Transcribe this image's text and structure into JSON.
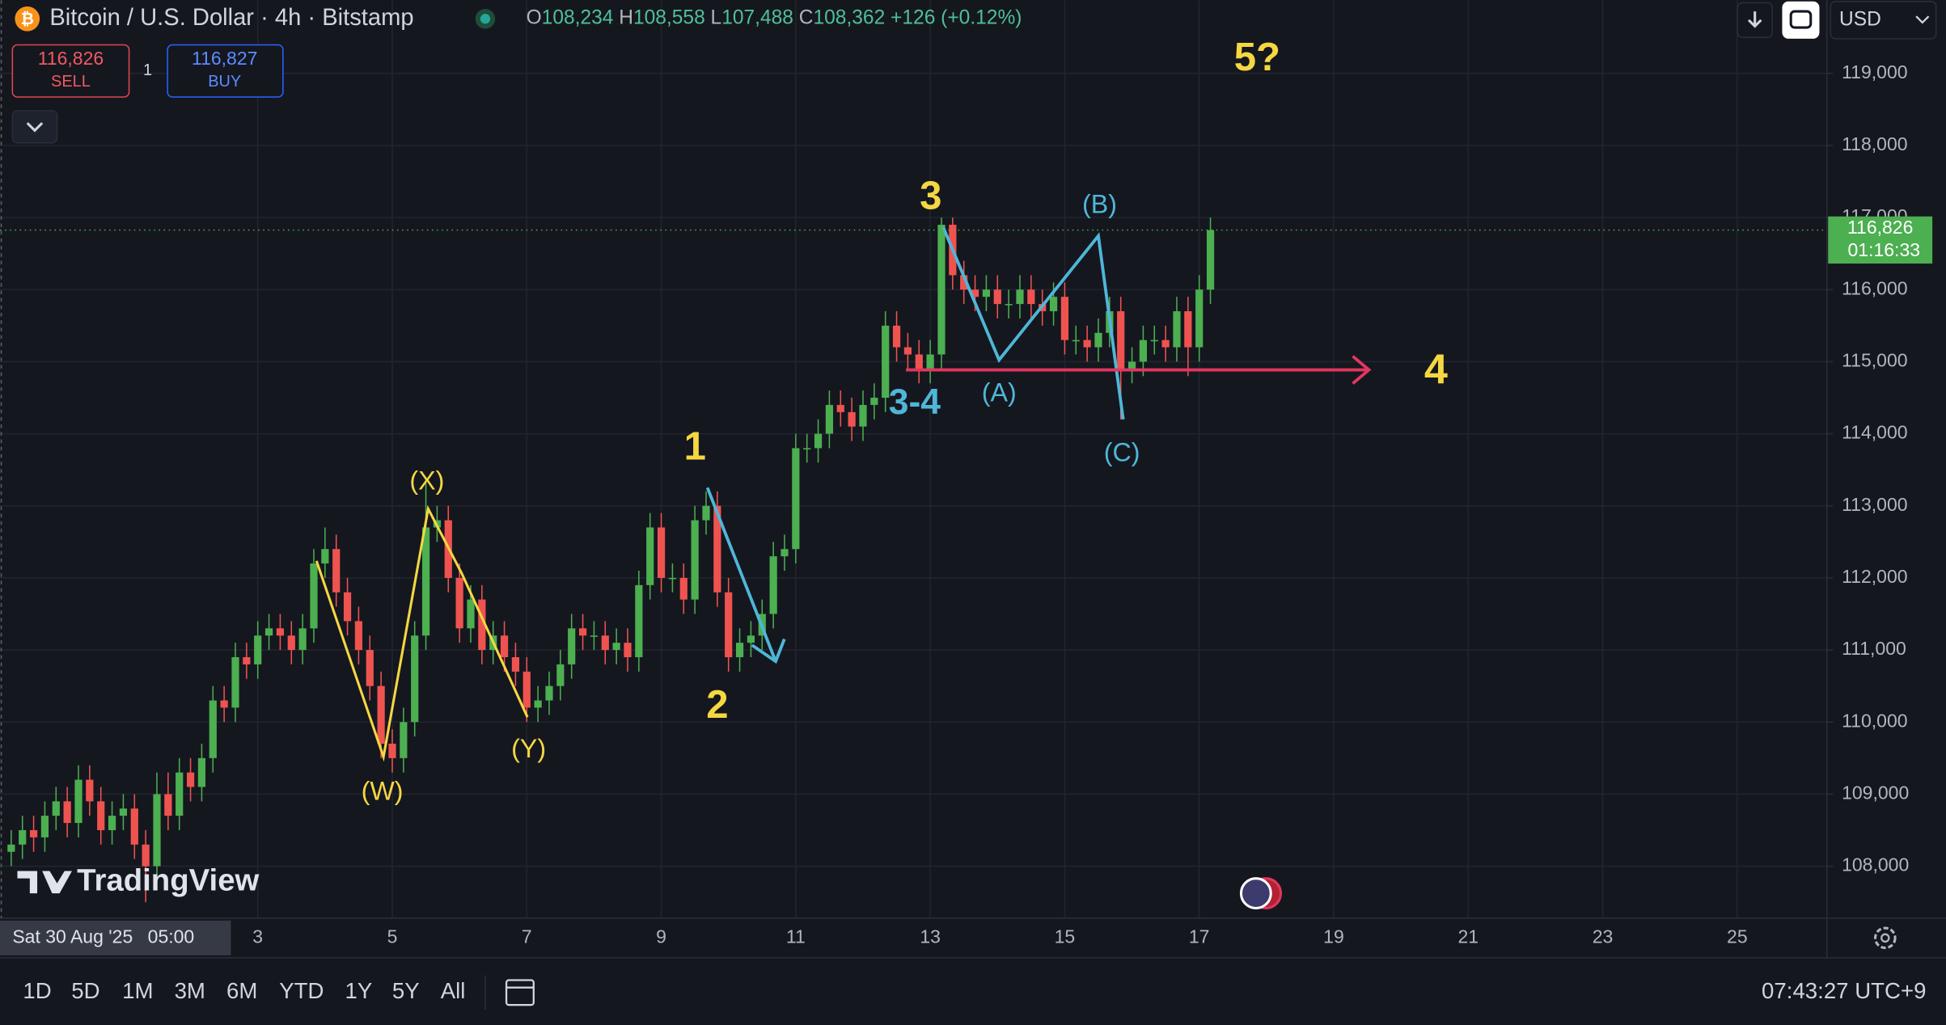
{
  "header": {
    "symbol": "Bitcoin / U.S. Dollar · 4h · Bitstamp",
    "ohlc": [
      {
        "key": "O",
        "value": "108,234"
      },
      {
        "key": "H",
        "value": "108,558"
      },
      {
        "key": "L",
        "value": "107,488"
      },
      {
        "key": "C",
        "value": "108,362"
      }
    ],
    "change": "+126 (+0.12%)",
    "sell_price": "116,826",
    "sell_label": "SELL",
    "quantity": "1",
    "buy_price": "116,827",
    "buy_label": "BUY",
    "currency": "USD"
  },
  "chart_data": {
    "type": "candlestick",
    "up_color": "#4caf50",
    "down_color": "#ef5350",
    "grid": true,
    "x": [
      8,
      12,
      16,
      20,
      24,
      28,
      32,
      36,
      40,
      44,
      48,
      52,
      56,
      60,
      64,
      68,
      72,
      76,
      80,
      84,
      88,
      92,
      96,
      100,
      104,
      108,
      112,
      116,
      120,
      124,
      128,
      132,
      136,
      140,
      144,
      148,
      152,
      156,
      160,
      164,
      168,
      172,
      176,
      180,
      184,
      188,
      192,
      196,
      200,
      204,
      208,
      212,
      216,
      220,
      224,
      228,
      232,
      236,
      240,
      244,
      248,
      252,
      256,
      260,
      264,
      268,
      272,
      276,
      280,
      284,
      288,
      292,
      296,
      300,
      304,
      308,
      312,
      316,
      320,
      324,
      328,
      332,
      336,
      340,
      344,
      348,
      352,
      356,
      360,
      364,
      368,
      372,
      376,
      380,
      384,
      388,
      392,
      396,
      400,
      404,
      408,
      412,
      416,
      420,
      424,
      428,
      432,
      436
    ],
    "candles": [
      [
        108200,
        108500,
        108000,
        108300
      ],
      [
        108300,
        108700,
        108100,
        108500
      ],
      [
        108500,
        108700,
        108200,
        108400
      ],
      [
        108400,
        108900,
        108200,
        108700
      ],
      [
        108700,
        109100,
        108500,
        108900
      ],
      [
        108900,
        109100,
        108400,
        108600
      ],
      [
        108600,
        109400,
        108400,
        109200
      ],
      [
        109200,
        109400,
        108700,
        108900
      ],
      [
        108900,
        109100,
        108300,
        108500
      ],
      [
        108500,
        108900,
        108300,
        108700
      ],
      [
        108700,
        109000,
        108500,
        108800
      ],
      [
        108800,
        109000,
        108100,
        108300
      ],
      [
        108300,
        108500,
        107500,
        108000
      ],
      [
        108000,
        109300,
        107800,
        109000
      ],
      [
        109000,
        109300,
        108500,
        108700
      ],
      [
        108700,
        109500,
        108500,
        109300
      ],
      [
        109300,
        109500,
        108900,
        109100
      ],
      [
        109100,
        109700,
        108900,
        109500
      ],
      [
        109500,
        110500,
        109300,
        110300
      ],
      [
        110300,
        110500,
        110000,
        110200
      ],
      [
        110200,
        111100,
        110000,
        110900
      ],
      [
        110900,
        111100,
        110600,
        110800
      ],
      [
        110800,
        111400,
        110600,
        111200
      ],
      [
        111200,
        111500,
        111000,
        111300
      ],
      [
        111300,
        111500,
        111000,
        111200
      ],
      [
        111200,
        111400,
        110800,
        111000
      ],
      [
        111000,
        111500,
        110800,
        111300
      ],
      [
        111300,
        112400,
        111100,
        112200
      ],
      [
        112200,
        112700,
        112000,
        112400
      ],
      [
        112400,
        112600,
        111600,
        111800
      ],
      [
        111800,
        112000,
        111200,
        111400
      ],
      [
        111400,
        111600,
        110800,
        111000
      ],
      [
        111000,
        111200,
        110300,
        110500
      ],
      [
        110500,
        110700,
        109500,
        109700
      ],
      [
        109700,
        109900,
        109300,
        109500
      ],
      [
        109500,
        110200,
        109300,
        110000
      ],
      [
        110000,
        111400,
        109800,
        111200
      ],
      [
        111200,
        113400,
        111000,
        112700
      ],
      [
        112700,
        113000,
        112500,
        112800
      ],
      [
        112800,
        113000,
        111800,
        112000
      ],
      [
        112000,
        112200,
        111100,
        111300
      ],
      [
        111300,
        111900,
        111100,
        111700
      ],
      [
        111700,
        111900,
        110800,
        111000
      ],
      [
        111000,
        111400,
        110800,
        111200
      ],
      [
        111200,
        111400,
        110700,
        110900
      ],
      [
        110900,
        111100,
        110500,
        110700
      ],
      [
        110700,
        110900,
        110000,
        110200
      ],
      [
        110200,
        110500,
        110000,
        110300
      ],
      [
        110300,
        110700,
        110100,
        110500
      ],
      [
        110500,
        111000,
        110300,
        110800
      ],
      [
        110800,
        111500,
        110600,
        111300
      ],
      [
        111300,
        111500,
        111000,
        111200
      ],
      [
        111200,
        111400,
        111000,
        111200
      ],
      [
        111200,
        111400,
        110800,
        111000
      ],
      [
        111000,
        111300,
        110800,
        111100
      ],
      [
        111100,
        111300,
        110700,
        110900
      ],
      [
        110900,
        112100,
        110700,
        111900
      ],
      [
        111900,
        112900,
        111700,
        112700
      ],
      [
        112700,
        112900,
        111800,
        112000
      ],
      [
        112000,
        112200,
        111800,
        112000
      ],
      [
        112000,
        112200,
        111500,
        111700
      ],
      [
        111700,
        113000,
        111500,
        112800
      ],
      [
        112800,
        113200,
        112600,
        113000
      ],
      [
        113000,
        113200,
        111600,
        111800
      ],
      [
        111800,
        112000,
        110700,
        110900
      ],
      [
        110900,
        111300,
        110700,
        111100
      ],
      [
        111100,
        111400,
        110900,
        111200
      ],
      [
        111200,
        111700,
        111000,
        111500
      ],
      [
        111500,
        112500,
        111300,
        112300
      ],
      [
        112300,
        112600,
        112100,
        112400
      ],
      [
        112400,
        114000,
        112200,
        113800
      ],
      [
        113800,
        114000,
        113600,
        113800
      ],
      [
        113800,
        114200,
        113600,
        114000
      ],
      [
        114000,
        114600,
        113800,
        114400
      ],
      [
        114400,
        114600,
        114100,
        114300
      ],
      [
        114300,
        114500,
        113900,
        114100
      ],
      [
        114100,
        114600,
        113900,
        114400
      ],
      [
        114400,
        114700,
        114200,
        114500
      ],
      [
        114500,
        115700,
        114300,
        115500
      ],
      [
        115500,
        115700,
        115000,
        115200
      ],
      [
        115200,
        115400,
        114900,
        115100
      ],
      [
        115100,
        115300,
        114700,
        114900
      ],
      [
        114900,
        115300,
        114700,
        115100
      ],
      [
        115100,
        117000,
        114900,
        116900
      ],
      [
        116900,
        117000,
        116000,
        116200
      ],
      [
        116200,
        116400,
        115800,
        116000
      ],
      [
        116000,
        116200,
        115700,
        115900
      ],
      [
        115900,
        116200,
        115700,
        116000
      ],
      [
        116000,
        116200,
        115600,
        115800
      ],
      [
        115800,
        116000,
        115600,
        115800
      ],
      [
        115800,
        116200,
        115600,
        116000
      ],
      [
        116000,
        116200,
        115600,
        115800
      ],
      [
        115800,
        116000,
        115500,
        115700
      ],
      [
        115700,
        116100,
        115500,
        115900
      ],
      [
        115900,
        116100,
        115100,
        115300
      ],
      [
        115300,
        115500,
        115100,
        115300
      ],
      [
        115300,
        115500,
        115000,
        115200
      ],
      [
        115200,
        115600,
        115000,
        115400
      ],
      [
        115400,
        115900,
        115200,
        115700
      ],
      [
        115700,
        115900,
        114200,
        114900
      ],
      [
        114900,
        115200,
        114700,
        115000
      ],
      [
        115000,
        115500,
        114800,
        115300
      ],
      [
        115300,
        115500,
        115100,
        115300
      ],
      [
        115300,
        115500,
        115000,
        115200
      ],
      [
        115200,
        115900,
        115000,
        115700
      ],
      [
        115700,
        115900,
        114800,
        115200
      ],
      [
        115200,
        116200,
        115000,
        116000
      ],
      [
        116000,
        117000,
        115800,
        116826
      ]
    ],
    "ylim": [
      107280,
      120015
    ],
    "yticks": [
      {
        "value": 108000,
        "label": "108,000"
      },
      {
        "value": 109000,
        "label": "109,000"
      },
      {
        "value": 110000,
        "label": "110,000"
      },
      {
        "value": 111000,
        "label": "111,000"
      },
      {
        "value": 112000,
        "label": "112,000"
      },
      {
        "value": 113000,
        "label": "113,000"
      },
      {
        "value": 114000,
        "label": "114,000"
      },
      {
        "value": 115000,
        "label": "115,000"
      },
      {
        "value": 116000,
        "label": "116,000"
      },
      {
        "value": 117000,
        "label": "117,000"
      },
      {
        "value": 118000,
        "label": "118,000"
      },
      {
        "value": 119000,
        "label": "119,000"
      }
    ],
    "xlim": [
      4,
      656
    ],
    "xticks": [
      {
        "value": 96,
        "label": "3"
      },
      {
        "value": 144,
        "label": "5"
      },
      {
        "value": 192,
        "label": "7"
      },
      {
        "value": 240,
        "label": "9"
      },
      {
        "value": 288,
        "label": "11"
      },
      {
        "value": 336,
        "label": "13"
      },
      {
        "value": 384,
        "label": "15"
      },
      {
        "value": 432,
        "label": "17"
      },
      {
        "value": 480,
        "label": "19"
      },
      {
        "value": 528,
        "label": "21"
      },
      {
        "value": 576,
        "label": "23"
      },
      {
        "value": 624,
        "label": "25"
      }
    ],
    "last_price_label": "116,826",
    "countdown": "01:16:33",
    "crosshair_time": "Sat 30 Aug '25",
    "crosshair_clock": "05:00",
    "annotations": [
      "5?",
      "3",
      "(B)",
      "3-4",
      "(A)",
      "(C)",
      "4",
      "1",
      "2",
      "(X)",
      "(W)",
      "(Y)"
    ]
  },
  "footer": {
    "ranges": [
      "1D",
      "5D",
      "1M",
      "3M",
      "6M",
      "YTD",
      "1Y",
      "5Y",
      "All"
    ],
    "clock": "07:43:27 UTC+9",
    "brand": "TradingView"
  }
}
